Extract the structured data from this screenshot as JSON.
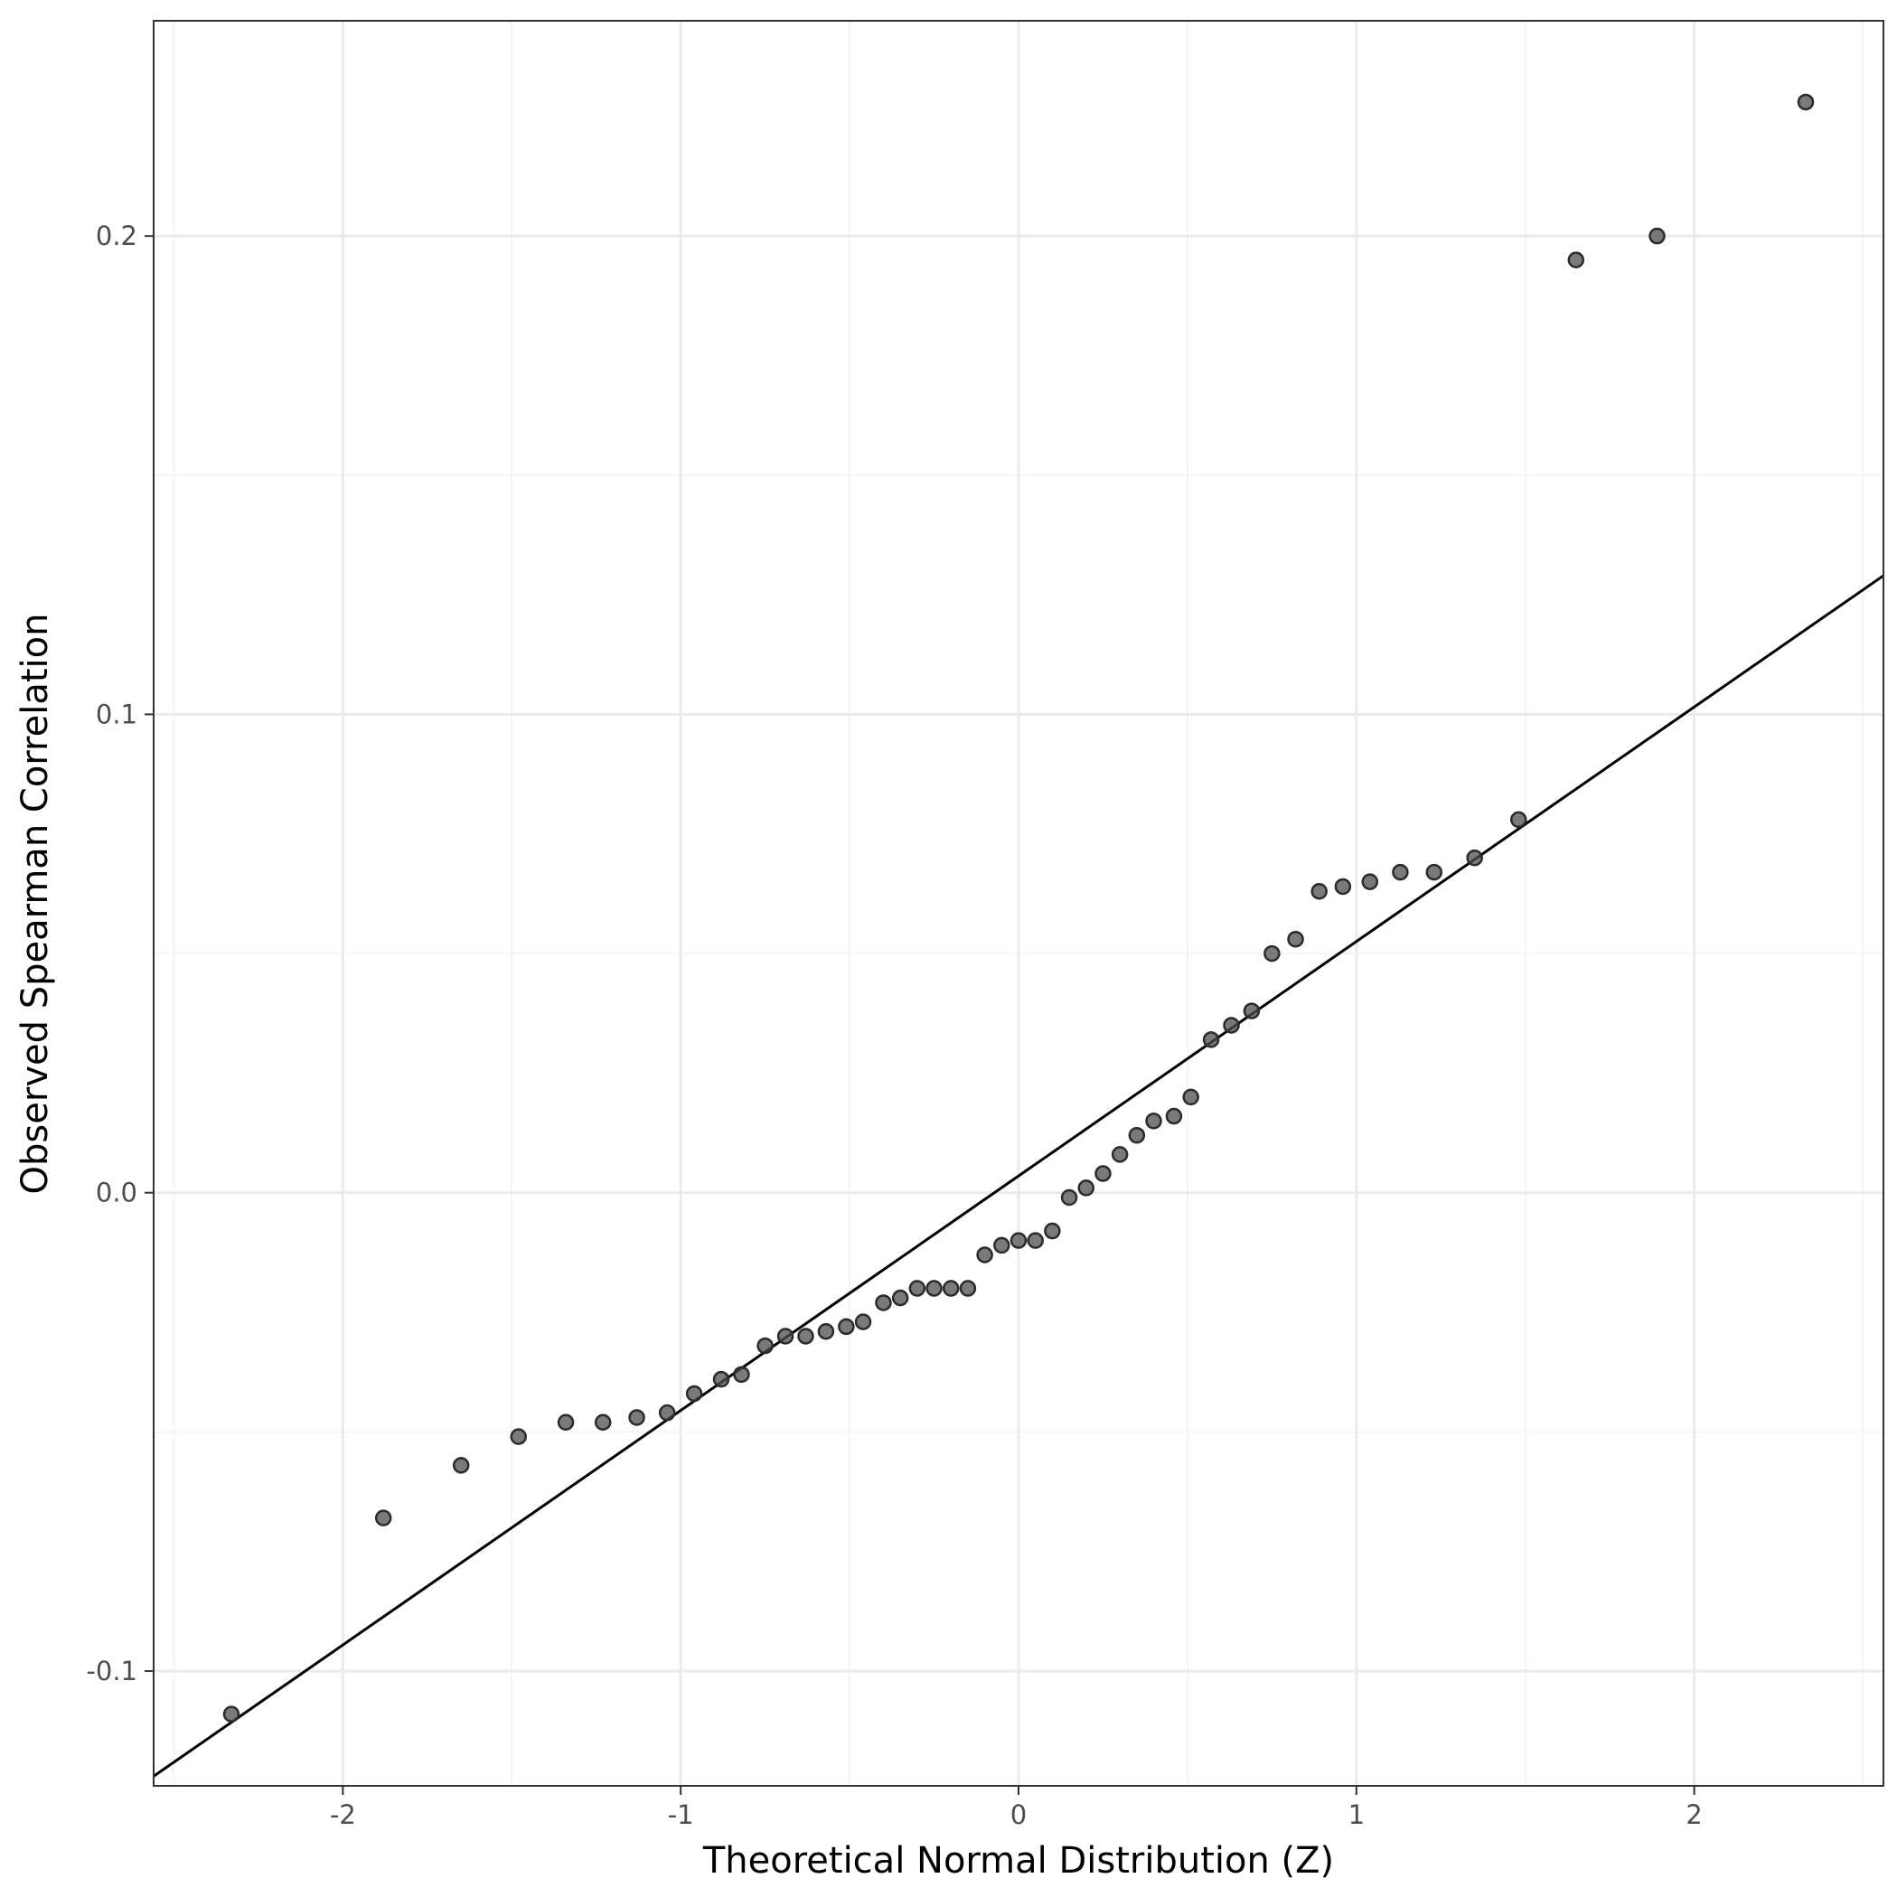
{
  "chart_data": {
    "type": "scatter",
    "xlabel": "Theoretical Normal Distribution (Z)",
    "ylabel": "Observed Spearman Correlation",
    "xlim": [
      -2.56,
      2.56
    ],
    "ylim": [
      -0.124,
      0.245
    ],
    "x_ticks": [
      -2,
      -1,
      0,
      1,
      2
    ],
    "x_tick_labels": [
      "-2",
      "-1",
      "0",
      "1",
      "2"
    ],
    "y_ticks": [
      -0.1,
      0.0,
      0.1,
      0.2
    ],
    "y_tick_labels": [
      "-0.1",
      "0.0",
      "0.1",
      "0.2"
    ],
    "grid": true,
    "point_color": "#4d4d4d",
    "line_color": "#000000",
    "reference_line": {
      "x": [
        -2.56,
        2.56
      ],
      "y": [
        -0.122,
        0.129
      ]
    },
    "points": {
      "x": [
        -2.33,
        -1.88,
        -1.65,
        -1.48,
        -1.34,
        -1.23,
        -1.13,
        -1.04,
        -0.96,
        -0.88,
        -0.82,
        -0.75,
        -0.69,
        -0.63,
        -0.57,
        -0.51,
        -0.46,
        -0.4,
        -0.35,
        -0.3,
        -0.25,
        -0.2,
        -0.15,
        -0.1,
        -0.05,
        0.0,
        0.05,
        0.1,
        0.15,
        0.2,
        0.25,
        0.3,
        0.35,
        0.4,
        0.46,
        0.51,
        0.57,
        0.63,
        0.69,
        0.75,
        0.82,
        0.89,
        0.96,
        1.04,
        1.13,
        1.23,
        1.35,
        1.48,
        1.65,
        1.89,
        2.33
      ],
      "y": [
        -0.109,
        -0.068,
        -0.057,
        -0.051,
        -0.048,
        -0.048,
        -0.047,
        -0.046,
        -0.042,
        -0.039,
        -0.038,
        -0.032,
        -0.03,
        -0.03,
        -0.029,
        -0.028,
        -0.027,
        -0.023,
        -0.022,
        -0.02,
        -0.02,
        -0.02,
        -0.02,
        -0.013,
        -0.011,
        -0.01,
        -0.01,
        -0.008,
        -0.001,
        0.001,
        0.004,
        0.008,
        0.012,
        0.015,
        0.016,
        0.02,
        0.032,
        0.035,
        0.038,
        0.05,
        0.053,
        0.063,
        0.064,
        0.065,
        0.067,
        0.067,
        0.07,
        0.078,
        0.195,
        0.2,
        0.228
      ]
    }
  }
}
